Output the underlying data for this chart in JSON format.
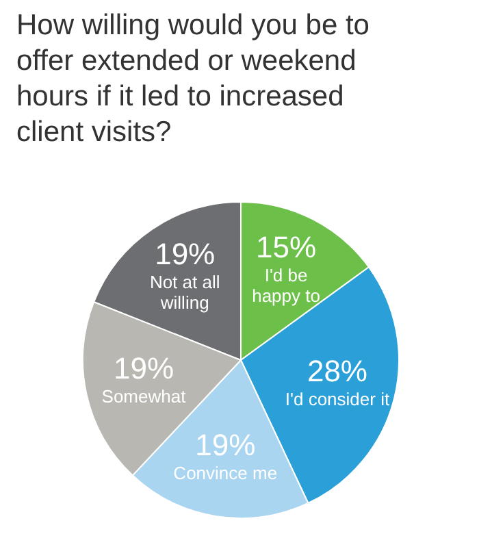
{
  "chart_data": {
    "type": "pie",
    "title": "How willing would you be to offer extended or weekend hours if it led to increased client visits?",
    "categories": [
      "I'd be happy to",
      "I'd consider it",
      "Convince me",
      "Somewhat",
      "Not at all willing"
    ],
    "values": [
      15,
      28,
      19,
      19,
      19
    ],
    "colors": [
      "#6cc04a",
      "#2a9fd8",
      "#a9d5f0",
      "#b9b7b2",
      "#6d6e71"
    ],
    "value_labels": [
      "15%",
      "28%",
      "19%",
      "19%",
      "19%"
    ],
    "legend": false
  }
}
